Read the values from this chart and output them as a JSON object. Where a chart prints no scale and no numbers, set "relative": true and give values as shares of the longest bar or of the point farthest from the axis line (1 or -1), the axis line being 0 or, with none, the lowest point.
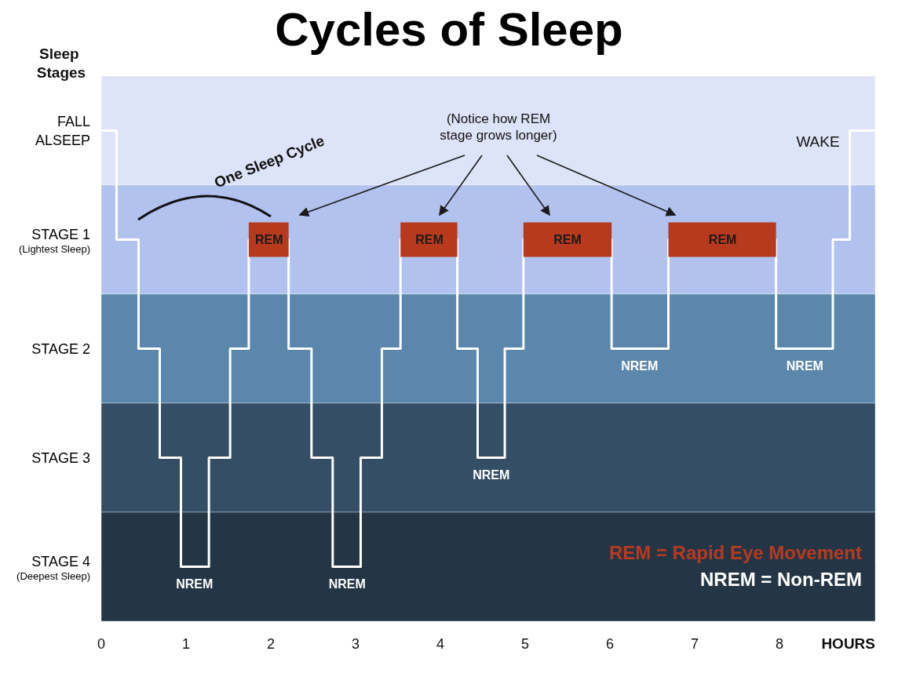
{
  "chart_data": {
    "type": "step",
    "title": "Cycles of Sleep",
    "xlabel": "HOURS",
    "ylabel": "Sleep Stages",
    "relative": true,
    "series": [
      {
        "color": "#ffffff",
        "x": [
          0,
          0.18,
          0.44,
          0.69,
          0.94,
          1.27,
          1.52,
          1.74,
          2.21,
          2.48,
          2.73,
          3.06,
          3.31,
          3.53,
          4.2,
          4.44,
          4.76,
          4.98,
          6.02,
          6.69,
          7.96,
          8.63,
          8.83,
          9.13
        ],
        "values": [
          1,
          0.75,
          0.5,
          0.25,
          0,
          0.25,
          0.5,
          0.75,
          0.5,
          0.25,
          0,
          0.25,
          0.5,
          0.75,
          0.5,
          0.25,
          0.5,
          0.75,
          0.5,
          0.75,
          0.5,
          0.75,
          1,
          1
        ]
      },
      {
        "type": "line",
        "color": "#b83a1e",
        "x": [
          1.74,
          2.21,
          null,
          3.53,
          4.2,
          null,
          4.98,
          6.02,
          null,
          6.69,
          7.96
        ],
        "values": [
          0.75,
          0.75,
          null,
          0.75,
          0.75,
          null,
          0.75,
          0.75,
          null,
          0.75,
          0.75
        ]
      }
    ],
    "xlim": [
      0,
      9.13
    ],
    "xticks": [
      0,
      1,
      2,
      3,
      4,
      5,
      6,
      7,
      8
    ],
    "bands": [
      {
        "axis": "y",
        "from": 0.875,
        "to": 1.125,
        "color": "#dde3f8",
        "label": "FALL ALSEEP"
      },
      {
        "axis": "y",
        "from": 0.625,
        "to": 0.875,
        "color": "#b1c2ef",
        "label": "STAGE 1\n(Lightest Sleep)"
      },
      {
        "axis": "y",
        "from": 0.375,
        "to": 0.625,
        "color": "#5a87ab",
        "label": "STAGE 2"
      },
      {
        "axis": "y",
        "from": 0.125,
        "to": 0.375,
        "color": "#344e66",
        "label": "STAGE 3"
      },
      {
        "axis": "y",
        "from": -0.125,
        "to": 0.125,
        "color": "#243646",
        "label": "STAGE 4\n(Deepest Sleep)"
      }
    ],
    "marker": "none",
    "annotations": [
      "(Notice how REM\nstage grows longer)",
      "One Sleep Cycle",
      "WAKE",
      "REM = Rapid Eye Movement",
      "NREM = Non-REM",
      {
        "text": "REM",
        "x": 1.98,
        "y": 0.75
      },
      {
        "text": "REM",
        "x": 3.87,
        "y": 0.75
      },
      {
        "text": "REM",
        "x": 5.5,
        "y": 0.75
      },
      {
        "text": "REM",
        "x": 7.33,
        "y": 0.75
      },
      {
        "text": "NREM",
        "x": 1.1,
        "y": 0
      },
      {
        "text": "NREM",
        "x": 2.9,
        "y": 0
      },
      {
        "text": "NREM",
        "x": 4.6,
        "y": 0.25
      },
      {
        "text": "NREM",
        "x": 6.35,
        "y": 0.5
      },
      {
        "text": "NREM",
        "x": 8.3,
        "y": 0.5
      }
    ]
  }
}
